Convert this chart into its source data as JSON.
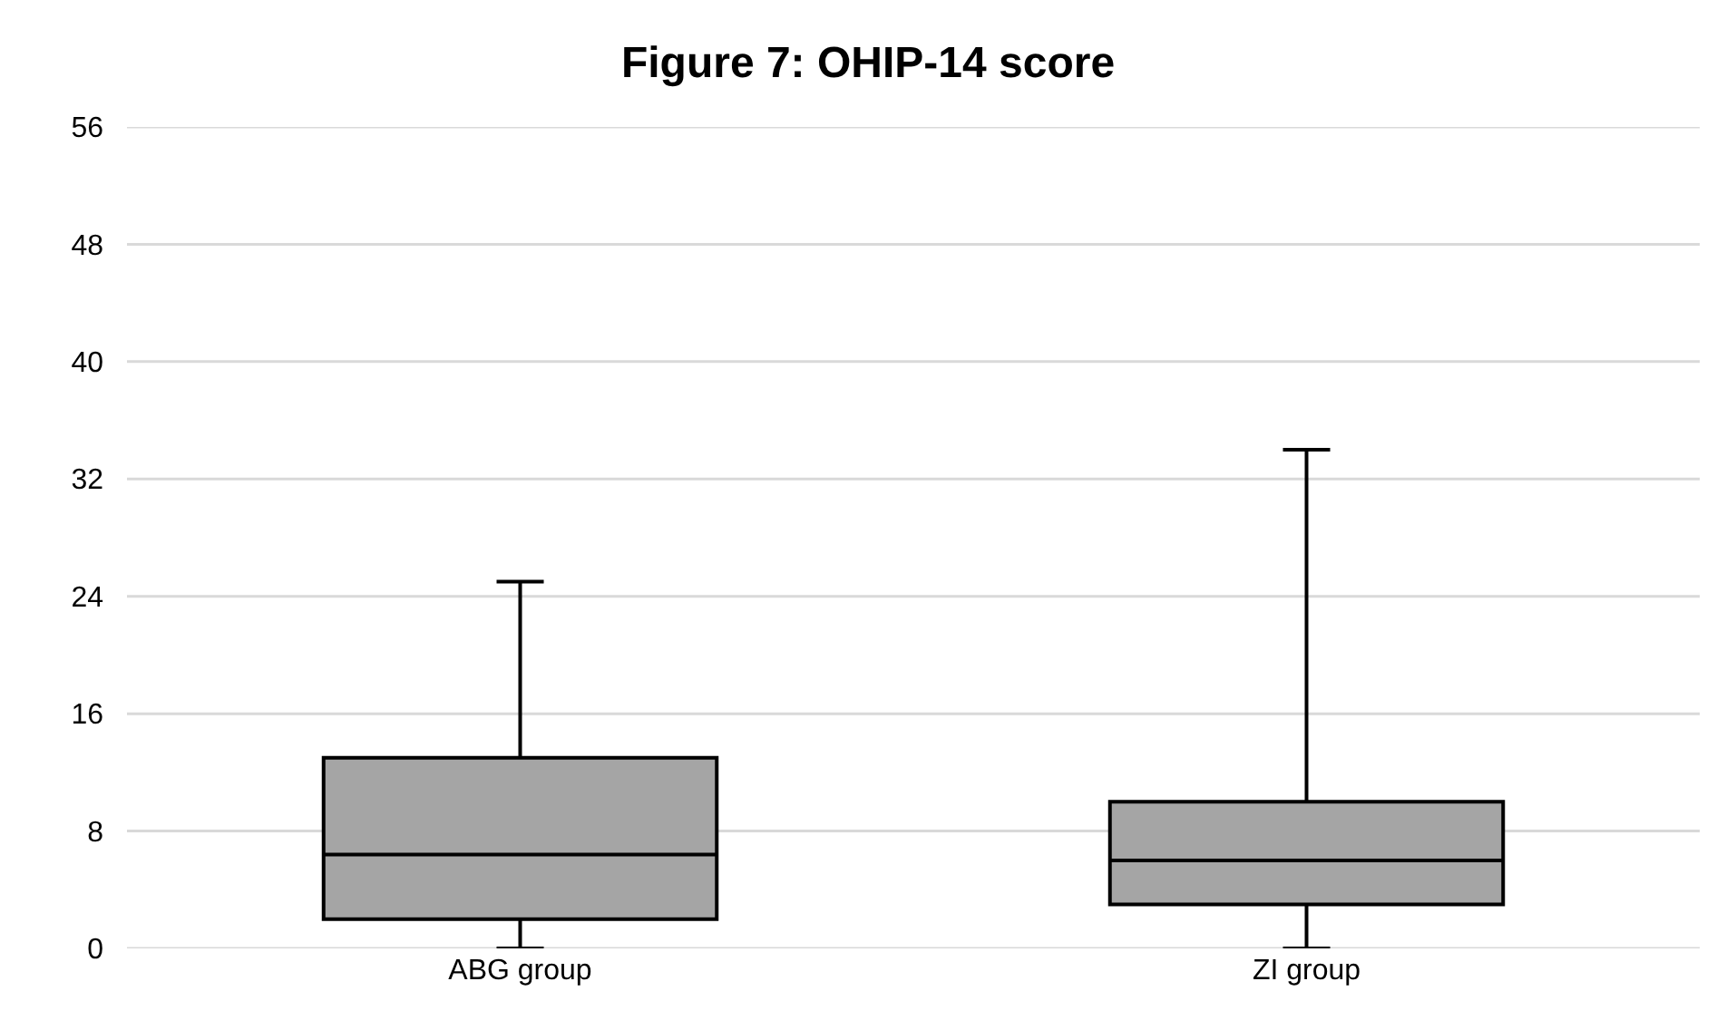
{
  "chart_data": {
    "type": "box",
    "title": "Figure 7: OHIP-14 score",
    "categories": [
      "ABG group",
      "ZI group"
    ],
    "series": [
      {
        "color": "#a5a5a5",
        "boxes": [
          {
            "low": 0,
            "q1": 2,
            "median": 6.4,
            "q3": 13,
            "high": 25
          },
          {
            "low": 0,
            "q1": 3,
            "median": 6,
            "q3": 10,
            "high": 34
          }
        ]
      }
    ],
    "ylim": [
      0,
      56
    ],
    "yticks": [
      0,
      8,
      16,
      24,
      32,
      40,
      48,
      56
    ],
    "grid": "y"
  }
}
